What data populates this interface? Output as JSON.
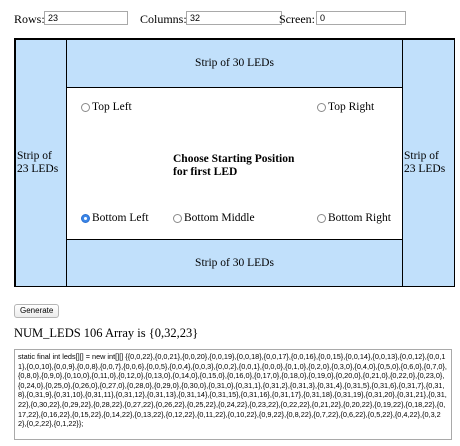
{
  "inputs": {
    "rows": {
      "label": "Rows:",
      "value": "23"
    },
    "columns": {
      "label": "Columns:",
      "value": "32"
    },
    "screen": {
      "label": "Screen:",
      "value": "0"
    }
  },
  "layout": {
    "strip_top": "Strip of 30 LEDs",
    "strip_bottom": "Strip of 30 LEDs",
    "strip_left": "Strip of 23 LEDs",
    "strip_right": "Strip of 23 LEDs",
    "prompt_line1": "Choose Starting Position",
    "prompt_line2": "for first LED",
    "options": {
      "top_left": "Top Left",
      "top_right": "Top Right",
      "bottom_left": "Bottom Left",
      "bottom_middle": "Bottom Middle",
      "bottom_right": "Bottom Right"
    },
    "selected": "bottom_left",
    "selected_color": "#3b86e8",
    "strip_color": "#c1e0fb"
  },
  "generate_label": "Generate",
  "num_leds_text": "NUM_LEDS 106 Array is {0,32,23}",
  "code_output": "static final int leds[][] = new int[][] {{0,0,22},{0,0,21},{0,0,20},{0,0,19},{0,0,18},{0,0,17},{0,0,16},{0,0,15},{0,0,14},{0,0,13},{0,0,12},{0,0,11},{0,0,10},{0,0,9},{0,0,8},{0,0,7},{0,0,6},{0,0,5},{0,0,4},{0,0,3},{0,0,2},{0,0,1},{0,0,0},{0,1,0},{0,2,0},{0,3,0},{0,4,0},{0,5,0},{0,6,0},{0,7,0},{0,8,0},{0,9,0},{0,10,0},{0,11,0},{0,12,0},{0,13,0},{0,14,0},{0,15,0},{0,16,0},{0,17,0},{0,18,0},{0,19,0},{0,20,0},{0,21,0},{0,22,0},{0,23,0},{0,24,0},{0,25,0},{0,26,0},{0,27,0},{0,28,0},{0,29,0},{0,30,0},{0,31,0},{0,31,1},{0,31,2},{0,31,3},{0,31,4},{0,31,5},{0,31,6},{0,31,7},{0,31,8},{0,31,9},{0,31,10},{0,31,11},{0,31,12},{0,31,13},{0,31,14},{0,31,15},{0,31,16},{0,31,17},{0,31,18},{0,31,19},{0,31,20},{0,31,21},{0,31,22},{0,30,22},{0,29,22},{0,28,22},{0,27,22},{0,26,22},{0,25,22},{0,24,22},{0,23,22},{0,22,22},{0,21,22},{0,20,22},{0,19,22},{0,18,22},{0,17,22},{0,16,22},{0,15,22},{0,14,22},{0,13,22},{0,12,22},{0,11,22},{0,10,22},{0,9,22},{0,8,22},{0,7,22},{0,6,22},{0,5,22},{0,4,22},{0,3,22},{0,2,22},{0,1,22}};"
}
